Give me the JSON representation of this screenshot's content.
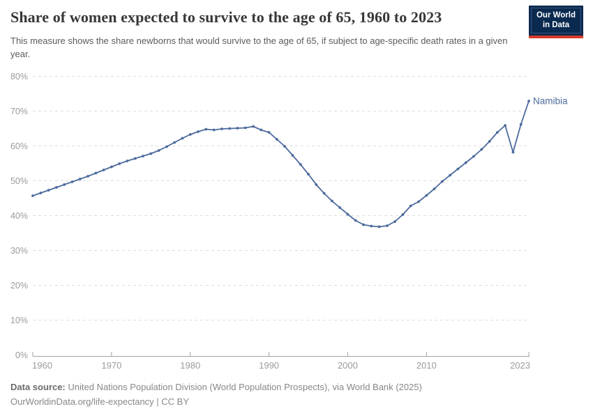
{
  "header": {
    "title": "Share of women expected to survive to the age of 65, 1960 to 2023",
    "subtitle": "This measure shows the share newborns that would survive to the age of 65, if subject to age-specific death rates in a given year.",
    "logo_line1": "Our World",
    "logo_line2": "in Data"
  },
  "chart_data": {
    "type": "line",
    "title": "Share of women expected to survive to the age of 65, 1960 to 2023",
    "xlabel": "",
    "ylabel": "",
    "xlim": [
      1960,
      2023
    ],
    "ylim": [
      0,
      80
    ],
    "grid": "horizontal-dashed",
    "legend_position": "end-of-line-label",
    "x_ticks": [
      1960,
      1970,
      1980,
      1990,
      2000,
      2010,
      2023
    ],
    "y_ticks": [
      0,
      10,
      20,
      30,
      40,
      50,
      60,
      70,
      80
    ],
    "y_tick_suffix": "%",
    "series": [
      {
        "name": "Namibia",
        "color": "#4C6A9C",
        "x": [
          1960,
          1961,
          1962,
          1963,
          1964,
          1965,
          1966,
          1967,
          1968,
          1969,
          1970,
          1971,
          1972,
          1973,
          1974,
          1975,
          1976,
          1977,
          1978,
          1979,
          1980,
          1981,
          1982,
          1983,
          1984,
          1985,
          1986,
          1987,
          1988,
          1989,
          1990,
          1991,
          1992,
          1993,
          1994,
          1995,
          1996,
          1997,
          1998,
          1999,
          2000,
          2001,
          2002,
          2003,
          2004,
          2005,
          2006,
          2007,
          2008,
          2009,
          2010,
          2011,
          2012,
          2013,
          2014,
          2015,
          2016,
          2017,
          2018,
          2019,
          2020,
          2021,
          2022,
          2023
        ],
        "values": [
          45.7,
          46.5,
          47.3,
          48.1,
          48.9,
          49.7,
          50.5,
          51.3,
          52.2,
          53.1,
          54.0,
          54.9,
          55.7,
          56.4,
          57.1,
          57.8,
          58.7,
          59.8,
          61.0,
          62.2,
          63.3,
          64.1,
          64.8,
          64.6,
          64.9,
          65.0,
          65.1,
          65.2,
          65.6,
          64.6,
          63.9,
          61.9,
          59.9,
          57.3,
          54.7,
          51.9,
          48.9,
          46.4,
          44.2,
          42.3,
          40.4,
          38.6,
          37.4,
          37.0,
          36.8,
          37.1,
          38.3,
          40.3,
          42.8,
          44.0,
          45.8,
          47.7,
          49.8,
          51.6,
          53.4,
          55.2,
          57.0,
          59.0,
          61.3,
          63.9,
          65.9,
          58.2,
          66.2,
          72.9
        ]
      }
    ],
    "colors": {
      "line": "#4C6A9C",
      "series_label": "#4C6A9C",
      "gridline": "#dedede",
      "axis_line": "#a3a3a3",
      "tick_label": "#9b9b9b"
    }
  },
  "footer": {
    "source_label": "Data source:",
    "source_text": " United Nations Population Division (World Population Prospects), via World Bank (2025)",
    "license_text": "OurWorldinData.org/life-expectancy | CC BY"
  }
}
